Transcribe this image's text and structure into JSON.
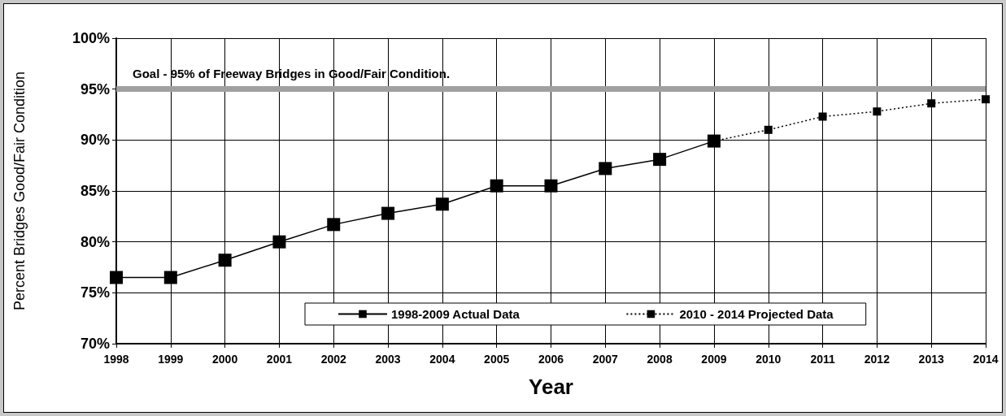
{
  "chart_data": {
    "type": "line",
    "xlabel": "Year",
    "ylabel": "Percent Bridges Good/Fair Condition",
    "categories": [
      "1998",
      "1999",
      "2000",
      "2001",
      "2002",
      "2003",
      "2004",
      "2005",
      "2006",
      "2007",
      "2008",
      "2009",
      "2010",
      "2011",
      "2012",
      "2013",
      "2014"
    ],
    "series": [
      {
        "name": "1998-2009 Actual Data",
        "color": "#000000",
        "line_style": "solid",
        "values": [
          76.5,
          76.5,
          78.2,
          80.0,
          81.7,
          82.8,
          83.7,
          85.5,
          85.5,
          87.2,
          88.1,
          89.9,
          null,
          null,
          null,
          null,
          null
        ]
      },
      {
        "name": "2010 - 2014 Projected Data",
        "color": "#000000",
        "line_style": "dotted",
        "values": [
          null,
          null,
          null,
          null,
          null,
          null,
          null,
          null,
          null,
          null,
          null,
          89.9,
          91.0,
          92.3,
          92.8,
          93.6,
          94.0
        ]
      }
    ],
    "ylim": [
      70,
      100
    ],
    "yticks": [
      {
        "value": 70,
        "label": "70%"
      },
      {
        "value": 75,
        "label": "75%"
      },
      {
        "value": 80,
        "label": "80%"
      },
      {
        "value": 85,
        "label": "85%"
      },
      {
        "value": 90,
        "label": "90%"
      },
      {
        "value": 95,
        "label": "95%"
      },
      {
        "value": 100,
        "label": "100%"
      }
    ],
    "ref_lines": [
      {
        "axis": "y",
        "value": 95,
        "label": "Goal - 95% of Freeway Bridges in Good/Fair Condition.",
        "color": "#a0a0a0"
      }
    ],
    "marker": "square",
    "grid": true,
    "legend": "bottom"
  }
}
